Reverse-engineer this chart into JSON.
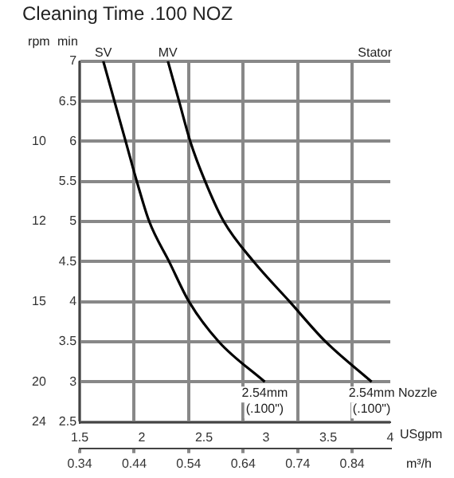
{
  "chart_data": {
    "type": "line",
    "title": "Cleaning Time .100 NOZ",
    "xlabel": "USgpm",
    "x2label": "m³/h",
    "ylabel": "min",
    "y2label": "rpm",
    "xlim": [
      1.5,
      4
    ],
    "xticks": [
      1.5,
      2,
      2.5,
      3,
      3.5,
      4
    ],
    "x2lim": [
      0.34,
      0.91
    ],
    "x2ticks": [
      0.34,
      0.44,
      0.54,
      0.64,
      0.74,
      0.84
    ],
    "ylim": [
      2.5,
      7
    ],
    "yticks": [
      2.5,
      3,
      3.5,
      4,
      4.5,
      5,
      5.5,
      6,
      6.5,
      7
    ],
    "y2_categories": [
      null,
      null,
      "10",
      null,
      "12",
      null,
      "15",
      null,
      "20",
      "24"
    ],
    "grid": true,
    "legend": false,
    "marker": "none",
    "line_style": "solid",
    "series": [
      {
        "name": "SV",
        "color": "#000000",
        "x": [
          1.69,
          1.78,
          1.87,
          1.96,
          2.06,
          2.22,
          2.38,
          2.62,
          2.99
        ],
        "values": [
          7,
          6.5,
          6,
          5.5,
          5,
          4.5,
          4,
          3.5,
          3
        ]
      },
      {
        "name": "MV",
        "color": "#000000",
        "x": [
          2.21,
          2.3,
          2.39,
          2.51,
          2.66,
          2.9,
          3.19,
          3.48,
          3.85
        ],
        "values": [
          7,
          6.5,
          6,
          5.5,
          5,
          4.5,
          4,
          3.5,
          3
        ]
      }
    ],
    "annotations": [
      "Stator",
      {
        "text": "2.54mm\n(.100\")",
        "x": 2.99,
        "y": 3
      },
      {
        "text": "2.54mm\n(.100\")",
        "x": 3.85,
        "y": 3
      },
      "Nozzle"
    ]
  }
}
